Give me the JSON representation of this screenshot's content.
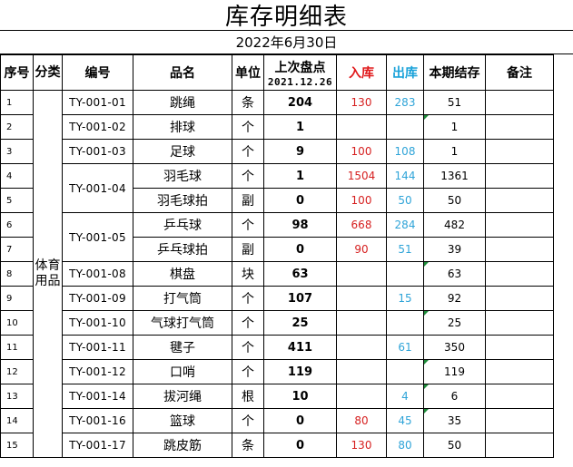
{
  "title": "库存明细表",
  "date": "2022年6月30日",
  "headers": {
    "idx": "序号",
    "category": "分类",
    "code": "编号",
    "name": "品名",
    "unit": "单位",
    "last_count": "上次盘点",
    "last_count_date": "2021.12.26",
    "in": "入库",
    "out": "出库",
    "balance": "本期结存",
    "note": "备注"
  },
  "colors": {
    "in_header": "#e0191b",
    "out_header": "#1aa2d9",
    "in_value": "#d62020",
    "out_value": "#2fa4d8",
    "comment_marker": "#1e8c3a"
  },
  "category": "体育用品",
  "rows": [
    {
      "idx": "1",
      "code": "TY-001-01",
      "name": "跳绳",
      "unit": "条",
      "last": "204",
      "in": "130",
      "out": "283",
      "balance": "51"
    },
    {
      "idx": "2",
      "code": "TY-001-02",
      "name": "排球",
      "unit": "个",
      "last": "1",
      "in": "",
      "out": "",
      "balance": "1"
    },
    {
      "idx": "3",
      "code": "TY-001-03",
      "name": "足球",
      "unit": "个",
      "last": "9",
      "in": "100",
      "out": "108",
      "balance": "1"
    },
    {
      "idx": "4",
      "code": "TY-001-04",
      "name": "羽毛球",
      "unit": "个",
      "last": "1",
      "in": "1504",
      "out": "144",
      "balance": "1361"
    },
    {
      "idx": "5",
      "code": "",
      "name": "羽毛球拍",
      "unit": "副",
      "last": "0",
      "in": "100",
      "out": "50",
      "balance": "50"
    },
    {
      "idx": "6",
      "code": "TY-001-05",
      "name": "乒乓球",
      "unit": "个",
      "last": "98",
      "in": "668",
      "out": "284",
      "balance": "482"
    },
    {
      "idx": "7",
      "code": "",
      "name": "乒乓球拍",
      "unit": "副",
      "last": "0",
      "in": "90",
      "out": "51",
      "balance": "39"
    },
    {
      "idx": "8",
      "code": "TY-001-08",
      "name": "棋盘",
      "unit": "块",
      "last": "63",
      "in": "",
      "out": "",
      "balance": "63"
    },
    {
      "idx": "9",
      "code": "TY-001-09",
      "name": "打气筒",
      "unit": "个",
      "last": "107",
      "in": "",
      "out": "15",
      "balance": "92"
    },
    {
      "idx": "10",
      "code": "TY-001-10",
      "name": "气球打气筒",
      "unit": "个",
      "last": "25",
      "in": "",
      "out": "",
      "balance": "25"
    },
    {
      "idx": "11",
      "code": "TY-001-11",
      "name": "毽子",
      "unit": "个",
      "last": "411",
      "in": "",
      "out": "61",
      "balance": "350"
    },
    {
      "idx": "12",
      "code": "TY-001-12",
      "name": "口哨",
      "unit": "个",
      "last": "119",
      "in": "",
      "out": "",
      "balance": "119"
    },
    {
      "idx": "13",
      "code": "TY-001-14",
      "name": "拔河绳",
      "unit": "根",
      "last": "10",
      "in": "",
      "out": "4",
      "balance": "6"
    },
    {
      "idx": "14",
      "code": "TY-001-16",
      "name": "篮球",
      "unit": "个",
      "last": "0",
      "in": "80",
      "out": "45",
      "balance": "35"
    },
    {
      "idx": "15",
      "code": "TY-001-17",
      "name": "跳皮筋",
      "unit": "条",
      "last": "0",
      "in": "130",
      "out": "80",
      "balance": "50"
    }
  ]
}
